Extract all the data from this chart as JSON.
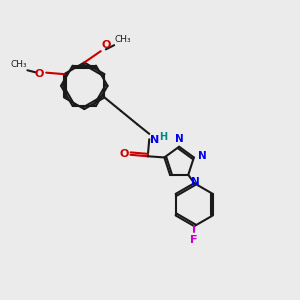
{
  "background_color": "#ebebeb",
  "bond_color": "#1a1a1a",
  "N_color": "#0000ee",
  "O_color": "#cc0000",
  "F_color": "#cc00cc",
  "H_color": "#008888",
  "figsize": [
    3.0,
    3.0
  ],
  "dpi": 100,
  "xlim": [
    0,
    10
  ],
  "ylim": [
    0,
    10
  ]
}
